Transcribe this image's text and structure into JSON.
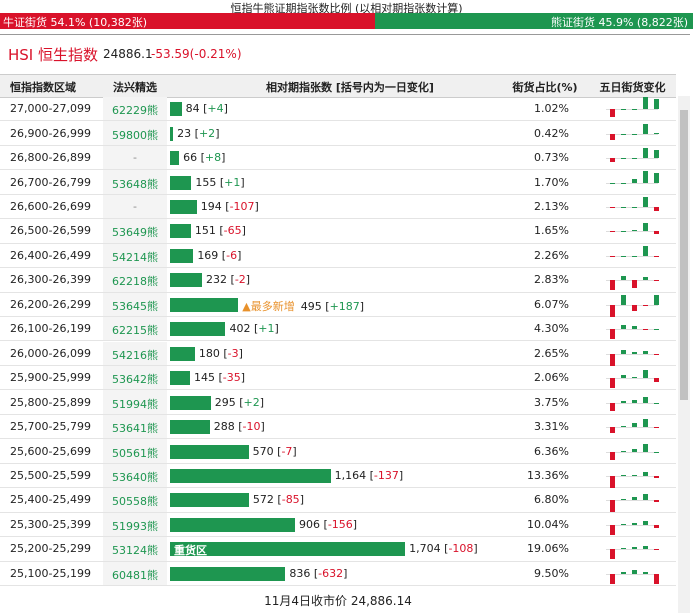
{
  "header": {
    "title": "恒指牛熊证期指张数比例 (以相对期指张数计算)",
    "bull": {
      "label": "牛证街货 54.1% (10,382张)",
      "share": 54.1
    },
    "bear": {
      "label": "熊证街货 45.9% (8,822张)",
      "share": 45.9
    }
  },
  "index": {
    "name": "HSI 恒生指数",
    "value": "24886.1",
    "change": "-53.59(-0.21%)"
  },
  "columns": [
    "恒指指数区域",
    "法兴精选",
    "相对期指张数 [括号内为一日变化]",
    "街货占比(%)",
    "五日街货变化"
  ],
  "rows": [
    {
      "range": "27,000-27,099",
      "pick": "62229熊",
      "contracts": 84,
      "change": "+4",
      "share": "1.02%",
      "five_day": [
        -8,
        0,
        0,
        12,
        10
      ]
    },
    {
      "range": "26,900-26,999",
      "pick": "59800熊",
      "contracts": 23,
      "change": "+2",
      "share": "0.42%",
      "five_day": [
        -6,
        0,
        0,
        10,
        1
      ]
    },
    {
      "range": "26,800-26,899",
      "pick": "-",
      "contracts": 66,
      "change": "+8",
      "share": "0.73%",
      "five_day": [
        -4,
        0,
        0,
        10,
        8
      ]
    },
    {
      "range": "26,700-26,799",
      "pick": "53648熊",
      "contracts": 155,
      "change": "+1",
      "share": "1.70%",
      "five_day": [
        0,
        0,
        4,
        12,
        10
      ]
    },
    {
      "range": "26,600-26,699",
      "pick": "-",
      "contracts": 194,
      "change": "-107",
      "share": "2.13%",
      "five_day": [
        -1,
        0,
        0,
        10,
        -4
      ]
    },
    {
      "range": "26,500-26,599",
      "pick": "53649熊",
      "contracts": 151,
      "change": "-65",
      "share": "1.65%",
      "five_day": [
        -1,
        0,
        1,
        8,
        -3
      ]
    },
    {
      "range": "26,400-26,499",
      "pick": "54214熊",
      "contracts": 169,
      "change": "-6",
      "share": "2.26%",
      "five_day": [
        -1,
        0,
        0,
        10,
        -1
      ]
    },
    {
      "range": "26,300-26,399",
      "pick": "62218熊",
      "contracts": 232,
      "change": "-2",
      "share": "2.83%",
      "five_day": [
        -10,
        4,
        -8,
        3,
        -1
      ]
    },
    {
      "range": "26,200-26,299",
      "pick": "53645熊",
      "contracts": 495,
      "change": "+187",
      "share": "6.07%",
      "note": "▲最多新增",
      "five_day": [
        -12,
        10,
        -6,
        -1,
        10
      ]
    },
    {
      "range": "26,100-26,199",
      "pick": "62215熊",
      "contracts": 402,
      "change": "+1",
      "share": "4.30%",
      "five_day": [
        -10,
        4,
        3,
        -1,
        0
      ]
    },
    {
      "range": "26,000-26,099",
      "pick": "54216熊",
      "contracts": 180,
      "change": "-3",
      "share": "2.65%",
      "five_day": [
        -12,
        4,
        2,
        3,
        -1
      ]
    },
    {
      "range": "25,900-25,999",
      "pick": "53642熊",
      "contracts": 145,
      "change": "-35",
      "share": "2.06%",
      "five_day": [
        -10,
        3,
        1,
        8,
        -4
      ]
    },
    {
      "range": "25,800-25,899",
      "pick": "51994熊",
      "contracts": 295,
      "change": "+2",
      "share": "3.75%",
      "five_day": [
        -8,
        2,
        3,
        6,
        0
      ]
    },
    {
      "range": "25,700-25,799",
      "pick": "53641熊",
      "contracts": 288,
      "change": "-10",
      "share": "3.31%",
      "five_day": [
        -6,
        1,
        4,
        8,
        -1
      ]
    },
    {
      "range": "25,600-25,699",
      "pick": "50561熊",
      "contracts": 570,
      "change": "-7",
      "share": "6.36%",
      "five_day": [
        -8,
        1,
        3,
        8,
        0
      ]
    },
    {
      "range": "25,500-25,599",
      "pick": "53640熊",
      "contracts": {
        "value": 1164,
        "label": "1,164"
      },
      "change": "-137",
      "share": "13.36%",
      "five_day": [
        -12,
        1,
        1,
        4,
        -2
      ]
    },
    {
      "range": "25,400-25,499",
      "pick": "50558熊",
      "contracts": 572,
      "change": "-85",
      "share": "6.80%",
      "five_day": [
        -12,
        1,
        3,
        6,
        -2
      ]
    },
    {
      "range": "25,300-25,399",
      "pick": "51993熊",
      "contracts": 906,
      "change": "-156",
      "share": "10.04%",
      "five_day": [
        -10,
        1,
        2,
        4,
        -3
      ]
    },
    {
      "range": "25,200-25,299",
      "pick": "53124熊",
      "contracts": {
        "value": 1704,
        "label": "1,704"
      },
      "change": "-108",
      "share": "19.06%",
      "inner_note": "重货区",
      "five_day": [
        -10,
        1,
        2,
        3,
        -1
      ]
    },
    {
      "range": "25,100-25,199",
      "pick": "60481熊",
      "contracts": 836,
      "change": "-632",
      "share": "9.50%",
      "five_day": [
        -10,
        2,
        4,
        2,
        -10
      ]
    }
  ],
  "footer": "11月4日收市价 24,886.14"
}
